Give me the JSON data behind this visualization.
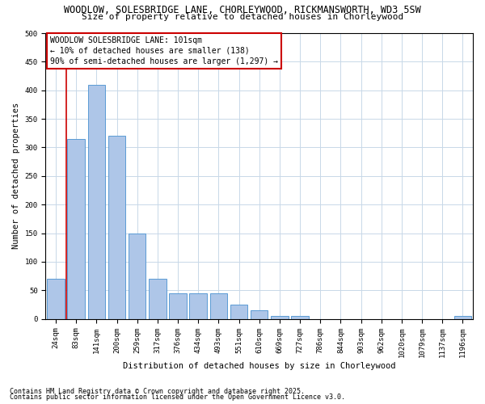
{
  "title_line1": "WOODLOW, SOLESBRIDGE LANE, CHORLEYWOOD, RICKMANSWORTH, WD3 5SW",
  "title_line2": "Size of property relative to detached houses in Chorleywood",
  "xlabel": "Distribution of detached houses by size in Chorleywood",
  "ylabel": "Number of detached properties",
  "categories": [
    "24sqm",
    "83sqm",
    "141sqm",
    "200sqm",
    "259sqm",
    "317sqm",
    "376sqm",
    "434sqm",
    "493sqm",
    "551sqm",
    "610sqm",
    "669sqm",
    "727sqm",
    "786sqm",
    "844sqm",
    "903sqm",
    "962sqm",
    "1020sqm",
    "1079sqm",
    "1137sqm",
    "1196sqm"
  ],
  "values": [
    70,
    315,
    410,
    320,
    150,
    70,
    45,
    45,
    45,
    25,
    15,
    5,
    5,
    0,
    0,
    0,
    0,
    0,
    0,
    0,
    5
  ],
  "bar_color": "#aec6e8",
  "bar_edge_color": "#5b9bd5",
  "vline_pos": 1.0,
  "vline_color": "#cc0000",
  "annotation_text": "WOODLOW SOLESBRIDGE LANE: 101sqm\n← 10% of detached houses are smaller (138)\n90% of semi-detached houses are larger (1,297) →",
  "annotation_box_color": "#ffffff",
  "annotation_box_edge": "#cc0000",
  "ylim": [
    0,
    500
  ],
  "yticks": [
    0,
    50,
    100,
    150,
    200,
    250,
    300,
    350,
    400,
    450,
    500
  ],
  "footer_line1": "Contains HM Land Registry data © Crown copyright and database right 2025.",
  "footer_line2": "Contains public sector information licensed under the Open Government Licence v3.0.",
  "bg_color": "#ffffff",
  "grid_color": "#c8d8e8",
  "title_fontsize": 8.5,
  "subtitle_fontsize": 8,
  "axis_label_fontsize": 7.5,
  "tick_fontsize": 6.5,
  "annotation_fontsize": 7,
  "footer_fontsize": 6
}
